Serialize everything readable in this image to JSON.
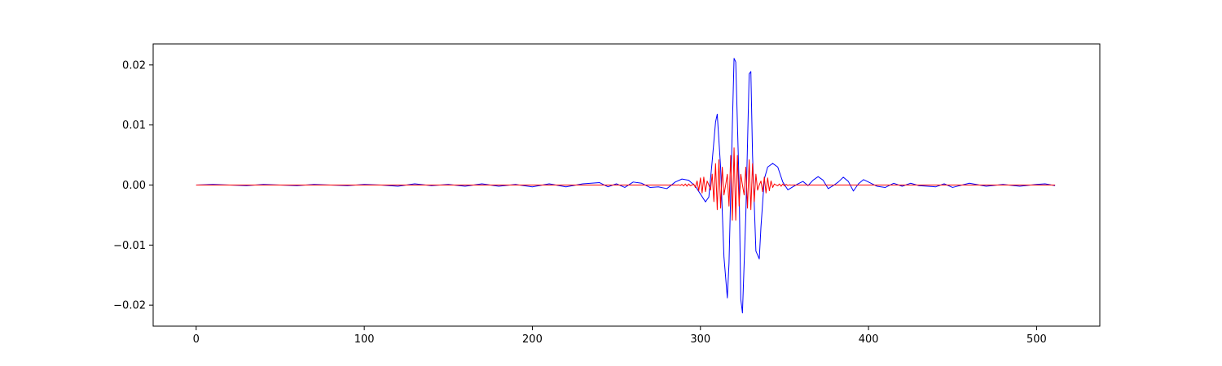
{
  "chart_data": {
    "type": "line",
    "title": "",
    "xlabel": "",
    "ylabel": "",
    "xlim": [
      -25.6,
      537.6
    ],
    "ylim": [
      -0.0235,
      0.0235
    ],
    "x_ticks": [
      0,
      100,
      200,
      300,
      400,
      500
    ],
    "x_tick_labels": [
      "0",
      "100",
      "200",
      "300",
      "400",
      "500"
    ],
    "y_ticks": [
      -0.02,
      -0.01,
      0.0,
      0.01,
      0.02
    ],
    "y_tick_labels": [
      "−0.02",
      "−0.01",
      "0.00",
      "0.01",
      "0.02"
    ],
    "grid": false,
    "legend": "none",
    "series": [
      {
        "color": "#0000ff",
        "x": [
          0,
          10,
          20,
          30,
          40,
          50,
          60,
          70,
          80,
          90,
          100,
          110,
          120,
          130,
          140,
          150,
          160,
          170,
          180,
          190,
          200,
          210,
          220,
          230,
          240,
          245,
          250,
          255,
          260,
          265,
          270,
          275,
          280,
          285,
          289,
          293,
          297,
          300,
          303,
          305,
          307,
          309,
          310,
          312,
          314,
          316,
          317,
          319,
          320,
          321,
          323,
          324,
          325,
          327,
          329,
          330,
          331,
          333,
          335,
          336,
          338,
          340,
          343,
          346,
          349,
          352,
          355,
          358,
          361,
          364,
          367,
          370,
          373,
          376,
          379,
          382,
          385,
          388,
          391,
          394,
          397,
          400,
          405,
          410,
          415,
          420,
          425,
          430,
          440,
          445,
          450,
          460,
          470,
          480,
          490,
          500,
          505,
          511
        ],
        "y": [
          0.0,
          0.0001,
          0.0,
          -0.0001,
          0.0001,
          0.0,
          -0.0001,
          0.0001,
          0.0,
          -0.0001,
          0.0001,
          0.0,
          -0.0002,
          0.0002,
          -0.0001,
          0.0001,
          -0.0002,
          0.0002,
          -0.0002,
          0.0001,
          -0.0003,
          0.0002,
          -0.0003,
          0.0002,
          0.0004,
          -0.0003,
          0.0002,
          -0.0004,
          0.0005,
          0.0003,
          -0.0004,
          -0.0003,
          -0.0006,
          0.0005,
          0.001,
          0.0008,
          -0.0002,
          -0.0015,
          -0.0028,
          -0.002,
          0.004,
          0.0105,
          0.0118,
          0.003,
          -0.012,
          -0.0188,
          -0.013,
          0.01,
          0.0211,
          0.0205,
          0.0,
          -0.019,
          -0.0213,
          -0.005,
          0.0185,
          0.0189,
          0.005,
          -0.011,
          -0.0123,
          -0.007,
          0.001,
          0.003,
          0.0036,
          0.003,
          0.0005,
          -0.0008,
          -0.0003,
          0.0002,
          0.0006,
          -0.0001,
          0.0008,
          0.0014,
          0.0008,
          -0.0006,
          -0.0001,
          0.0005,
          0.0013,
          0.0006,
          -0.001,
          0.0002,
          0.0009,
          0.0005,
          -0.0002,
          -0.0004,
          0.0003,
          -0.0002,
          0.0003,
          -0.0001,
          -0.0003,
          0.0002,
          -0.0004,
          0.0003,
          -0.0002,
          0.0001,
          -0.0002,
          0.0001,
          0.0002,
          -0.0001
        ]
      },
      {
        "color": "#ff0000",
        "peak_index": 320,
        "peak_amplitude": 0.0062,
        "envelope_width": 11,
        "cycles_per_sample": 0.45,
        "x_range": [
          0,
          511
        ]
      }
    ]
  }
}
